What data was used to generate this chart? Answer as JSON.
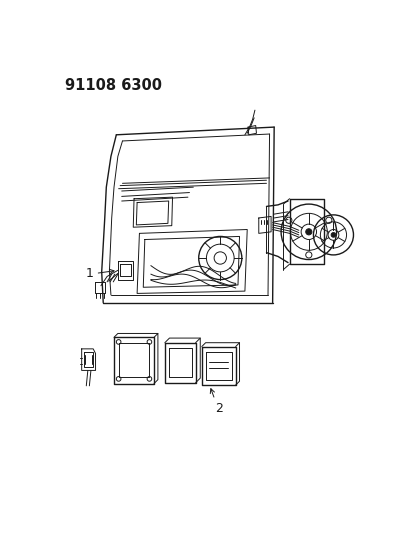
{
  "title": "91108 6300",
  "background_color": "#ffffff",
  "line_color": "#1a1a1a",
  "figsize": [
    3.99,
    5.33
  ],
  "dpi": 100,
  "title_fontsize": 10.5,
  "label_fontsize": 9
}
